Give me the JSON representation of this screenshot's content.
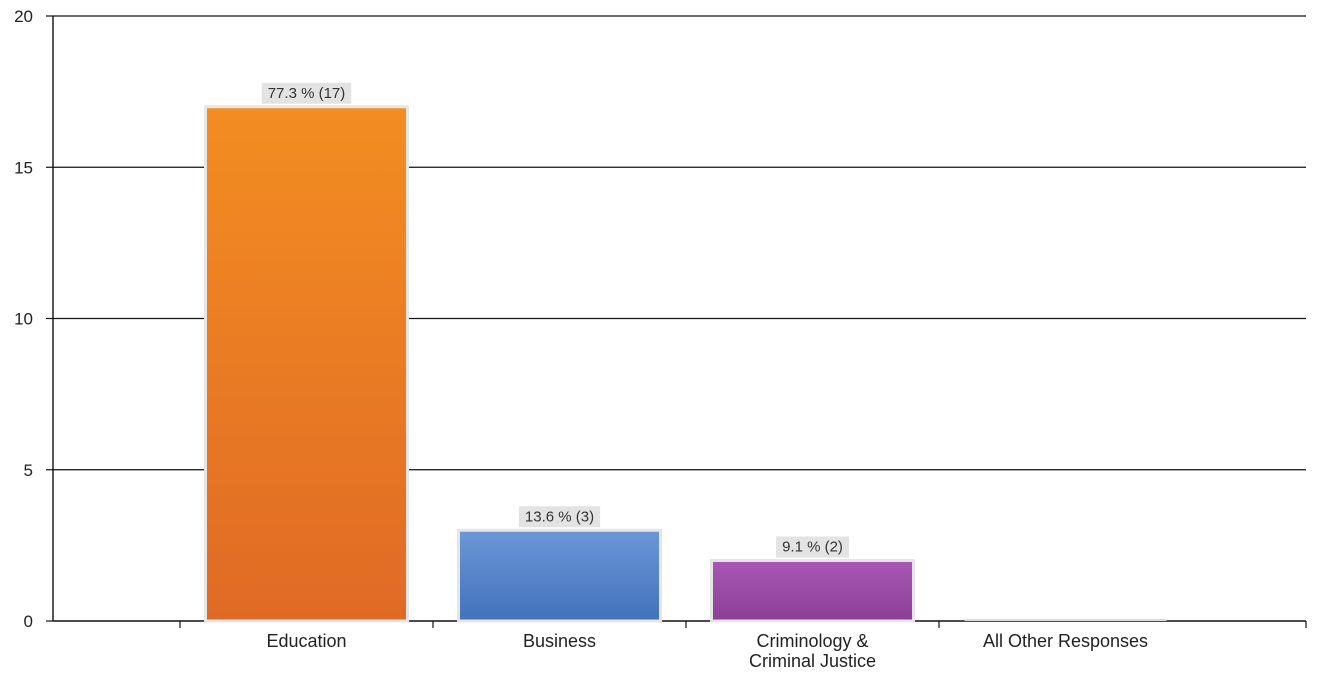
{
  "chart_data": {
    "type": "bar",
    "title": "",
    "xlabel": "",
    "ylabel": "",
    "ylim": [
      0,
      20
    ],
    "yticks": [
      0,
      5,
      10,
      15,
      20
    ],
    "grid": true,
    "categories": [
      {
        "label_lines": [
          "Education"
        ],
        "value": 17,
        "data_label": "77.3 % (17)",
        "color_top": "#f38d22",
        "color_bottom": "#e06a25"
      },
      {
        "label_lines": [
          "Business"
        ],
        "value": 3,
        "data_label": "13.6 % (3)",
        "color_top": "#6b97d6",
        "color_bottom": "#4372bd"
      },
      {
        "label_lines": [
          "Criminology &",
          "Criminal Justice"
        ],
        "value": 2,
        "data_label": "9.1 % (2)",
        "color_top": "#a858b4",
        "color_bottom": "#8c3f97"
      },
      {
        "label_lines": [
          "All Other Responses"
        ],
        "value": 0,
        "data_label": "",
        "color_top": "#dddddd",
        "color_bottom": "#cccccc"
      }
    ],
    "colors": {
      "grid": "#111111",
      "axis": "#111111",
      "bar_border": "#e6e6e6",
      "label_bg": "#e3e3e3"
    }
  }
}
